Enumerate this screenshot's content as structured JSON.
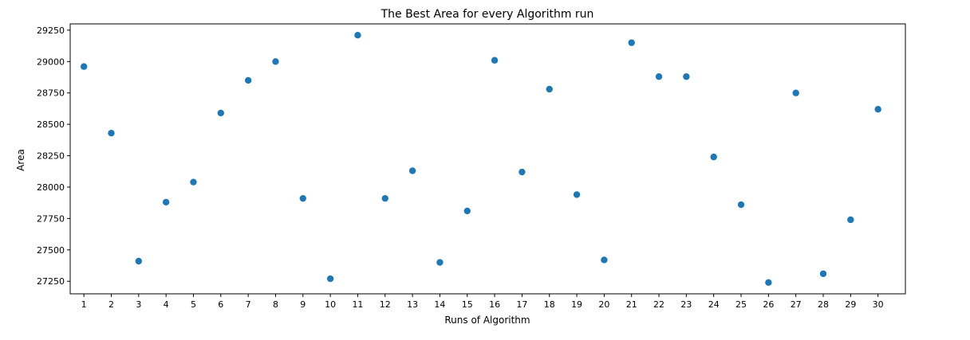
{
  "chart_data": {
    "type": "scatter",
    "title": "The Best Area for every Algorithm run",
    "xlabel": "Runs of Algorithm",
    "ylabel": "Area",
    "x": [
      1,
      2,
      3,
      4,
      5,
      6,
      7,
      8,
      9,
      10,
      11,
      12,
      13,
      14,
      15,
      16,
      17,
      18,
      19,
      20,
      21,
      22,
      23,
      24,
      25,
      26,
      27,
      28,
      29,
      30
    ],
    "y": [
      28960,
      28430,
      27410,
      27880,
      28040,
      28590,
      28850,
      29000,
      27910,
      27270,
      29210,
      27910,
      28130,
      27400,
      27810,
      29010,
      28120,
      28780,
      27940,
      27420,
      29150,
      28880,
      28880,
      28240,
      27860,
      27240,
      28750,
      27310,
      27740,
      28620
    ],
    "xticks": [
      "1",
      "2",
      "3",
      "4",
      "5",
      "6",
      "7",
      "8",
      "9",
      "10",
      "11",
      "12",
      "13",
      "14",
      "15",
      "16",
      "17",
      "18",
      "19",
      "20",
      "21",
      "22",
      "23",
      "24",
      "25",
      "26",
      "27",
      "28",
      "29",
      "30"
    ],
    "yticks": [
      27250,
      27500,
      27750,
      28000,
      28250,
      28500,
      28750,
      29000,
      29250
    ],
    "ytick_labels": [
      "27250",
      "27500",
      "27750",
      "28000",
      "28250",
      "28500",
      "28750",
      "29000",
      "29250"
    ],
    "xlim": [
      0.5,
      31.0
    ],
    "ylim": [
      27150,
      29300
    ],
    "grid": false,
    "marker_color": "#1f77b4"
  }
}
